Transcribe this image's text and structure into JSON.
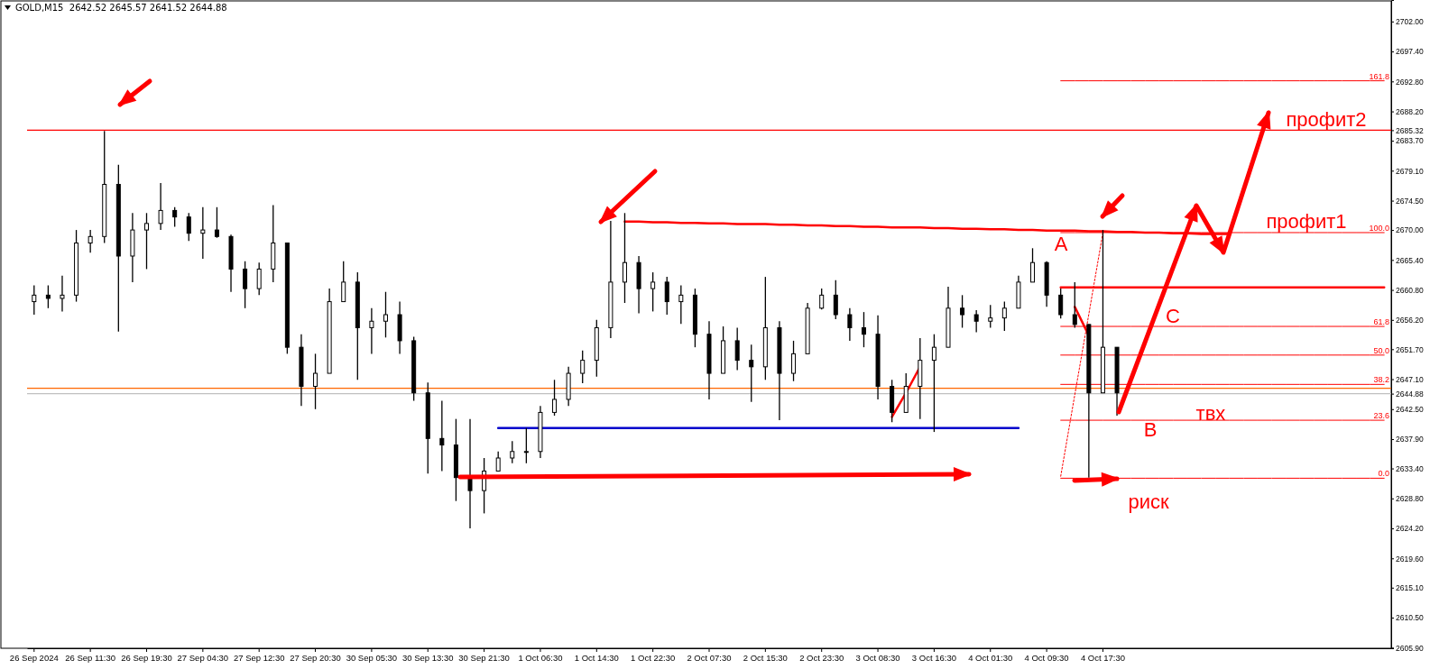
{
  "chart_data": {
    "type": "candlestick",
    "title": "GOLD,M15  2642.52 2645.57 2641.52 2644.88",
    "color": "#000000",
    "categories": [
      "26 Sep 2024",
      null,
      null,
      null,
      "26 Sep 11:30",
      null,
      null,
      null,
      "26 Sep 19:30",
      null,
      null,
      null,
      "27 Sep 04:30",
      null,
      null,
      null,
      "27 Sep 12:30",
      null,
      null,
      null,
      "27 Sep 20:30",
      null,
      null,
      null,
      "30 Sep 05:30",
      null,
      null,
      null,
      "30 Sep 13:30",
      null,
      null,
      null,
      "30 Sep 21:30",
      null,
      null,
      null,
      "1 Oct 06:30",
      null,
      null,
      null,
      "1 Oct 14:30",
      null,
      null,
      null,
      "1 Oct 22:30",
      null,
      null,
      null,
      "2 Oct 07:30",
      null,
      null,
      null,
      "2 Oct 15:30",
      null,
      null,
      null,
      "2 Oct 23:30",
      null,
      null,
      null,
      "3 Oct 08:30",
      null,
      null,
      null,
      "3 Oct 16:30",
      null,
      null,
      null,
      "4 Oct 01:30",
      null,
      null,
      null,
      "4 Oct 09:30",
      null,
      null,
      null,
      "4 Oct 17:30",
      null,
      null,
      null,
      null,
      null,
      null,
      null,
      null,
      null,
      null,
      null,
      null,
      null,
      null,
      null,
      null,
      null,
      null,
      null,
      null
    ],
    "ohlc": [
      [
        2659,
        2661.5,
        2657,
        2660
      ],
      [
        2660,
        2661.5,
        2658,
        2659.5
      ],
      [
        2659.5,
        2663,
        2657.5,
        2660
      ],
      [
        2660,
        2670,
        2659,
        2668
      ],
      [
        2668,
        2670,
        2666.5,
        2669
      ],
      [
        2669,
        2685.2,
        2668,
        2677
      ],
      [
        2677,
        2680,
        2654.4,
        2666
      ],
      [
        2666,
        2672.6,
        2662,
        2670
      ],
      [
        2670,
        2672.6,
        2664,
        2671
      ],
      [
        2671,
        2677.2,
        2670,
        2673
      ],
      [
        2673,
        2673.5,
        2670.5,
        2672
      ],
      [
        2672,
        2672.6,
        2668.3,
        2669.5
      ],
      [
        2669.5,
        2673.5,
        2665.6,
        2670
      ],
      [
        2670,
        2673.5,
        2668.8,
        2669
      ],
      [
        2669,
        2669.3,
        2660.5,
        2664
      ],
      [
        2664,
        2665.2,
        2658,
        2661
      ],
      [
        2661,
        2665,
        2660,
        2664
      ],
      [
        2664,
        2673.8,
        2662,
        2668
      ],
      [
        2668,
        2668,
        2651,
        2652
      ],
      [
        2652,
        2654,
        2643,
        2646
      ],
      [
        2646,
        2651,
        2642.5,
        2648
      ],
      [
        2648,
        2661,
        2648,
        2659
      ],
      [
        2659,
        2665.2,
        2659,
        2662
      ],
      [
        2662,
        2663.5,
        2647,
        2655
      ],
      [
        2655,
        2658,
        2651,
        2656
      ],
      [
        2656,
        2660.5,
        2653.5,
        2657
      ],
      [
        2657,
        2659,
        2651,
        2653
      ],
      [
        2653,
        2653.6,
        2643.8,
        2645
      ],
      [
        2645,
        2646.6,
        2632.6,
        2638
      ],
      [
        2638,
        2643.8,
        2633,
        2637
      ],
      [
        2637,
        2641,
        2628.4,
        2632
      ],
      [
        2632,
        2641,
        2624.2,
        2630
      ],
      [
        2630,
        2635,
        2626.5,
        2633
      ],
      [
        2633,
        2636,
        2633,
        2635
      ],
      [
        2635,
        2637.6,
        2634.2,
        2636
      ],
      [
        2636,
        2639.6,
        2634.2,
        2636
      ],
      [
        2636,
        2643,
        2635,
        2642
      ],
      [
        2642,
        2647,
        2641.5,
        2644
      ],
      [
        2644,
        2649,
        2643,
        2648
      ],
      [
        2648,
        2651.5,
        2646.5,
        2650
      ],
      [
        2650,
        2656.2,
        2647.5,
        2655
      ],
      [
        2655,
        2671.4,
        2653.4,
        2662
      ],
      [
        2662,
        2672.6,
        2658.8,
        2665
      ],
      [
        2665,
        2666,
        2657.2,
        2661
      ],
      [
        2661,
        2663.5,
        2657.5,
        2662
      ],
      [
        2662,
        2662.8,
        2657,
        2659
      ],
      [
        2659,
        2661.5,
        2655.6,
        2660
      ],
      [
        2660,
        2661,
        2652,
        2654
      ],
      [
        2654,
        2656,
        2644,
        2648
      ],
      [
        2648,
        2655.2,
        2648,
        2653
      ],
      [
        2653,
        2655,
        2648.5,
        2650
      ],
      [
        2650,
        2652.4,
        2643.6,
        2649
      ],
      [
        2649,
        2662.8,
        2647,
        2655
      ],
      [
        2655,
        2656,
        2640.8,
        2648
      ],
      [
        2648,
        2653,
        2646.8,
        2651
      ],
      [
        2651,
        2658.8,
        2651,
        2658
      ],
      [
        2658,
        2661,
        2657.8,
        2660
      ],
      [
        2660,
        2662.3,
        2656.3,
        2657
      ],
      [
        2657,
        2658,
        2653,
        2655
      ],
      [
        2655,
        2657.4,
        2652,
        2654
      ],
      [
        2654,
        2656.9,
        2644,
        2646
      ],
      [
        2646,
        2647,
        2640.5,
        2642
      ],
      [
        2642,
        2648,
        2642,
        2646
      ],
      [
        2646,
        2653.4,
        2641,
        2650
      ],
      [
        2650,
        2654,
        2639,
        2652
      ],
      [
        2652,
        2661.3,
        2652,
        2658
      ],
      [
        2658,
        2660,
        2655,
        2657
      ],
      [
        2657,
        2657.7,
        2654.3,
        2656
      ],
      [
        2656,
        2658.5,
        2655,
        2656.5
      ],
      [
        2656.5,
        2659,
        2654.5,
        2658
      ],
      [
        2658,
        2663,
        2658,
        2662
      ],
      [
        2662,
        2667.2,
        2662,
        2665
      ],
      [
        2665,
        2665.2,
        2658.2,
        2660
      ],
      [
        2660,
        2661,
        2656.4,
        2657
      ],
      [
        2657,
        2662,
        2655,
        2655.5
      ],
      [
        2655.5,
        2655.5,
        2632,
        2645
      ],
      [
        2645,
        2670,
        2645,
        2652
      ],
      [
        2652,
        2652,
        2641.5,
        2645
      ],
      null,
      null,
      null,
      null,
      null,
      null,
      null,
      null,
      null,
      null,
      null,
      null,
      null,
      null,
      null,
      null,
      null,
      null,
      null
    ],
    "series": [
      {
        "type": "line",
        "color": "#ff0000",
        "values": [
          null,
          null,
          null,
          null,
          null,
          null,
          null,
          null,
          null,
          null,
          null,
          null,
          null,
          null,
          null,
          null,
          null,
          null,
          null,
          null,
          null,
          null,
          null,
          null,
          null,
          null,
          null,
          null,
          null,
          null,
          null,
          null,
          null,
          null,
          null,
          null,
          null,
          null,
          null,
          null,
          null,
          null,
          2671.3,
          2671.3,
          2671.2,
          2671.2,
          2671.1,
          2671.1,
          2671.0,
          2671.0,
          2670.9,
          2670.9,
          2670.9,
          2670.8,
          2670.8,
          2670.7,
          2670.7,
          2670.6,
          2670.6,
          2670.5,
          2670.5,
          2670.4,
          2670.4,
          2670.4,
          2670.3,
          2670.3,
          2670.2,
          2670.2,
          2670.1,
          2670.1,
          2670.0,
          2670.0,
          2669.9,
          2669.9,
          2669.9,
          2669.8,
          2669.8,
          2669.7,
          2669.7,
          2669.6,
          2669.6,
          2669.5,
          2669.5,
          2669.4,
          2669.4,
          2669.4,
          null,
          null,
          null,
          null,
          null,
          null,
          null,
          null,
          null,
          null,
          null
        ]
      },
      {
        "type": "line",
        "color": "#0000cc",
        "values": [
          null,
          null,
          null,
          null,
          null,
          null,
          null,
          null,
          null,
          null,
          null,
          null,
          null,
          null,
          null,
          null,
          null,
          null,
          null,
          null,
          null,
          null,
          null,
          null,
          null,
          null,
          null,
          null,
          null,
          null,
          null,
          null,
          null,
          2639.6,
          2639.6,
          2639.6,
          2639.6,
          2639.6,
          2639.6,
          2639.6,
          2639.6,
          2639.6,
          2639.6,
          2639.6,
          2639.6,
          2639.6,
          2639.6,
          2639.6,
          2639.6,
          2639.6,
          2639.6,
          2639.6,
          2639.6,
          2639.6,
          2639.6,
          2639.6,
          2639.6,
          2639.6,
          2639.6,
          2639.6,
          2639.6,
          2639.6,
          2639.6,
          2639.6,
          2639.6,
          2639.6,
          2639.6,
          2639.6,
          2639.6,
          2639.6,
          2639.6,
          null,
          null,
          null,
          null,
          null,
          null,
          null,
          null,
          null,
          null,
          null,
          null,
          null,
          null,
          null,
          null,
          null,
          null,
          null,
          null,
          null,
          null,
          null,
          null,
          null,
          null
        ]
      },
      {
        "type": "line",
        "color": "#ff0000",
        "values": [
          null,
          null,
          null,
          null,
          null,
          null,
          null,
          null,
          null,
          null,
          null,
          null,
          null,
          null,
          null,
          null,
          null,
          null,
          null,
          null,
          null,
          null,
          null,
          null,
          null,
          null,
          null,
          null,
          null,
          null,
          null,
          null,
          null,
          null,
          null,
          null,
          null,
          null,
          null,
          null,
          null,
          null,
          null,
          null,
          null,
          null,
          null,
          null,
          null,
          null,
          null,
          null,
          null,
          null,
          null,
          null,
          null,
          null,
          null,
          null,
          null,
          2641.3,
          2645.0,
          2649.0,
          null,
          null,
          null,
          null,
          null,
          null,
          null,
          null,
          null,
          null,
          null,
          null,
          null,
          null,
          null,
          null,
          null,
          null,
          null,
          null,
          null,
          null,
          null,
          null,
          null,
          null,
          null,
          null,
          null,
          null,
          null,
          null,
          null
        ]
      },
      {
        "type": "line",
        "color": "#ff0000",
        "values": [
          null,
          null,
          null,
          null,
          null,
          null,
          null,
          null,
          null,
          null,
          null,
          null,
          null,
          null,
          null,
          null,
          null,
          null,
          null,
          null,
          null,
          null,
          null,
          null,
          null,
          null,
          null,
          null,
          null,
          null,
          null,
          null,
          null,
          null,
          null,
          null,
          null,
          null,
          null,
          null,
          null,
          null,
          null,
          null,
          null,
          null,
          null,
          null,
          null,
          null,
          null,
          null,
          null,
          null,
          null,
          null,
          null,
          null,
          null,
          null,
          null,
          null,
          null,
          null,
          null,
          null,
          null,
          null,
          null,
          null,
          null,
          null,
          null,
          null,
          2658.2,
          2653.8,
          null,
          null,
          null,
          null,
          null,
          null,
          null,
          null,
          null,
          null,
          null,
          null,
          null,
          null,
          null,
          null,
          null,
          null,
          null,
          null,
          null
        ]
      },
      {
        "type": "line",
        "color": "#ff0000",
        "line_style": "dotted",
        "values": [
          null,
          null,
          null,
          null,
          null,
          null,
          null,
          null,
          null,
          null,
          null,
          null,
          null,
          null,
          null,
          null,
          null,
          null,
          null,
          null,
          null,
          null,
          null,
          null,
          null,
          null,
          null,
          null,
          null,
          null,
          null,
          null,
          null,
          null,
          null,
          null,
          null,
          null,
          null,
          null,
          null,
          null,
          null,
          null,
          null,
          null,
          null,
          null,
          null,
          null,
          null,
          null,
          null,
          null,
          null,
          null,
          null,
          null,
          null,
          null,
          null,
          null,
          null,
          null,
          null,
          null,
          null,
          null,
          null,
          null,
          null,
          null,
          null,
          2632.2,
          2644.7,
          2657.1,
          2669.6,
          null,
          null,
          null,
          null,
          null,
          null,
          null,
          null,
          null,
          null,
          null,
          null,
          null,
          null,
          null,
          null,
          null,
          null,
          null,
          null
        ]
      },
      {
        "type": "line",
        "name": "161.8",
        "color": "#ff0000",
        "values": [
          null,
          null,
          null,
          null,
          null,
          null,
          null,
          null,
          null,
          null,
          null,
          null,
          null,
          null,
          null,
          null,
          null,
          null,
          null,
          null,
          null,
          null,
          null,
          null,
          null,
          null,
          null,
          null,
          null,
          null,
          null,
          null,
          null,
          null,
          null,
          null,
          null,
          null,
          null,
          null,
          null,
          null,
          null,
          null,
          null,
          null,
          null,
          null,
          null,
          null,
          null,
          null,
          null,
          null,
          null,
          null,
          null,
          null,
          null,
          null,
          null,
          null,
          null,
          null,
          null,
          null,
          null,
          null,
          null,
          null,
          null,
          null,
          null,
          2692.9,
          2692.9,
          2692.9,
          2692.9,
          2692.9,
          2692.9,
          2692.9,
          2692.9,
          2692.9,
          2692.9,
          2692.9,
          2692.9,
          2692.9,
          2692.9,
          2692.9,
          2692.9,
          2692.9,
          2692.9,
          2692.9,
          2692.9,
          2692.9,
          2692.9,
          2692.9,
          2692.9
        ]
      },
      {
        "type": "line",
        "name": "100.0",
        "color": "#ff0000",
        "values": [
          null,
          null,
          null,
          null,
          null,
          null,
          null,
          null,
          null,
          null,
          null,
          null,
          null,
          null,
          null,
          null,
          null,
          null,
          null,
          null,
          null,
          null,
          null,
          null,
          null,
          null,
          null,
          null,
          null,
          null,
          null,
          null,
          null,
          null,
          null,
          null,
          null,
          null,
          null,
          null,
          null,
          null,
          null,
          null,
          null,
          null,
          null,
          null,
          null,
          null,
          null,
          null,
          null,
          null,
          null,
          null,
          null,
          null,
          null,
          null,
          null,
          null,
          null,
          null,
          null,
          null,
          null,
          null,
          null,
          null,
          null,
          null,
          null,
          2669.6,
          2669.6,
          2669.6,
          2669.6,
          2669.6,
          2669.6,
          2669.6,
          2669.6,
          2669.6,
          2669.6,
          2669.6,
          2669.6,
          2669.6,
          2669.6,
          2669.6,
          2669.6,
          2669.6,
          2669.6,
          2669.6,
          2669.6,
          2669.6,
          2669.6,
          2669.6,
          2669.6
        ]
      },
      {
        "type": "line",
        "color": "#ff0000",
        "values": [
          null,
          null,
          null,
          null,
          null,
          null,
          null,
          null,
          null,
          null,
          null,
          null,
          null,
          null,
          null,
          null,
          null,
          null,
          null,
          null,
          null,
          null,
          null,
          null,
          null,
          null,
          null,
          null,
          null,
          null,
          null,
          null,
          null,
          null,
          null,
          null,
          null,
          null,
          null,
          null,
          null,
          null,
          null,
          null,
          null,
          null,
          null,
          null,
          null,
          null,
          null,
          null,
          null,
          null,
          null,
          null,
          null,
          null,
          null,
          null,
          null,
          null,
          null,
          null,
          null,
          null,
          null,
          null,
          null,
          null,
          null,
          null,
          null,
          2661.2,
          2661.2,
          2661.2,
          2661.2,
          2661.2,
          2661.2,
          2661.2,
          2661.2,
          2661.2,
          2661.2,
          2661.2,
          2661.2,
          2661.2,
          2661.2,
          2661.2,
          2661.2,
          2661.2,
          2661.2,
          2661.2,
          2661.2,
          2661.2,
          2661.2,
          2661.2,
          2661.2
        ]
      },
      {
        "type": "line",
        "name": "61.8",
        "color": "#ff0000",
        "values": [
          null,
          null,
          null,
          null,
          null,
          null,
          null,
          null,
          null,
          null,
          null,
          null,
          null,
          null,
          null,
          null,
          null,
          null,
          null,
          null,
          null,
          null,
          null,
          null,
          null,
          null,
          null,
          null,
          null,
          null,
          null,
          null,
          null,
          null,
          null,
          null,
          null,
          null,
          null,
          null,
          null,
          null,
          null,
          null,
          null,
          null,
          null,
          null,
          null,
          null,
          null,
          null,
          null,
          null,
          null,
          null,
          null,
          null,
          null,
          null,
          null,
          null,
          null,
          null,
          null,
          null,
          null,
          null,
          null,
          null,
          null,
          null,
          null,
          2655.2,
          2655.2,
          2655.2,
          2655.2,
          2655.2,
          2655.2,
          2655.2,
          2655.2,
          2655.2,
          2655.2,
          2655.2,
          2655.2,
          2655.2,
          2655.2,
          2655.2,
          2655.2,
          2655.2,
          2655.2,
          2655.2,
          2655.2,
          2655.2,
          2655.2,
          2655.2,
          2655.2
        ]
      },
      {
        "type": "line",
        "name": "50.0",
        "color": "#ff0000",
        "values": [
          null,
          null,
          null,
          null,
          null,
          null,
          null,
          null,
          null,
          null,
          null,
          null,
          null,
          null,
          null,
          null,
          null,
          null,
          null,
          null,
          null,
          null,
          null,
          null,
          null,
          null,
          null,
          null,
          null,
          null,
          null,
          null,
          null,
          null,
          null,
          null,
          null,
          null,
          null,
          null,
          null,
          null,
          null,
          null,
          null,
          null,
          null,
          null,
          null,
          null,
          null,
          null,
          null,
          null,
          null,
          null,
          null,
          null,
          null,
          null,
          null,
          null,
          null,
          null,
          null,
          null,
          null,
          null,
          null,
          null,
          null,
          null,
          null,
          2650.8,
          2650.8,
          2650.8,
          2650.8,
          2650.8,
          2650.8,
          2650.8,
          2650.8,
          2650.8,
          2650.8,
          2650.8,
          2650.8,
          2650.8,
          2650.8,
          2650.8,
          2650.8,
          2650.8,
          2650.8,
          2650.8,
          2650.8,
          2650.8,
          2650.8,
          2650.8,
          2650.8
        ]
      },
      {
        "type": "line",
        "name": "38.2",
        "color": "#ff0000",
        "values": [
          null,
          null,
          null,
          null,
          null,
          null,
          null,
          null,
          null,
          null,
          null,
          null,
          null,
          null,
          null,
          null,
          null,
          null,
          null,
          null,
          null,
          null,
          null,
          null,
          null,
          null,
          null,
          null,
          null,
          null,
          null,
          null,
          null,
          null,
          null,
          null,
          null,
          null,
          null,
          null,
          null,
          null,
          null,
          null,
          null,
          null,
          null,
          null,
          null,
          null,
          null,
          null,
          null,
          null,
          null,
          null,
          null,
          null,
          null,
          null,
          null,
          null,
          null,
          null,
          null,
          null,
          null,
          null,
          null,
          null,
          null,
          null,
          null,
          2646.3,
          2646.3,
          2646.3,
          2646.3,
          2646.3,
          2646.3,
          2646.3,
          2646.3,
          2646.3,
          2646.3,
          2646.3,
          2646.3,
          2646.3,
          2646.3,
          2646.3,
          2646.3,
          2646.3,
          2646.3,
          2646.3,
          2646.3,
          2646.3,
          2646.3,
          2646.3,
          2646.3
        ]
      },
      {
        "type": "line",
        "name": "23.6",
        "color": "#ff0000",
        "values": [
          null,
          null,
          null,
          null,
          null,
          null,
          null,
          null,
          null,
          null,
          null,
          null,
          null,
          null,
          null,
          null,
          null,
          null,
          null,
          null,
          null,
          null,
          null,
          null,
          null,
          null,
          null,
          null,
          null,
          null,
          null,
          null,
          null,
          null,
          null,
          null,
          null,
          null,
          null,
          null,
          null,
          null,
          null,
          null,
          null,
          null,
          null,
          null,
          null,
          null,
          null,
          null,
          null,
          null,
          null,
          null,
          null,
          null,
          null,
          null,
          null,
          null,
          null,
          null,
          null,
          null,
          null,
          null,
          null,
          null,
          null,
          null,
          null,
          2640.8,
          2640.8,
          2640.8,
          2640.8,
          2640.8,
          2640.8,
          2640.8,
          2640.8,
          2640.8,
          2640.8,
          2640.8,
          2640.8,
          2640.8,
          2640.8,
          2640.8,
          2640.8,
          2640.8,
          2640.8,
          2640.8,
          2640.8,
          2640.8,
          2640.8,
          2640.8,
          2640.8
        ]
      },
      {
        "type": "line",
        "name": "0.0",
        "color": "#ff0000",
        "values": [
          null,
          null,
          null,
          null,
          null,
          null,
          null,
          null,
          null,
          null,
          null,
          null,
          null,
          null,
          null,
          null,
          null,
          null,
          null,
          null,
          null,
          null,
          null,
          null,
          null,
          null,
          null,
          null,
          null,
          null,
          null,
          null,
          null,
          null,
          null,
          null,
          null,
          null,
          null,
          null,
          null,
          null,
          null,
          null,
          null,
          null,
          null,
          null,
          null,
          null,
          null,
          null,
          null,
          null,
          null,
          null,
          null,
          null,
          null,
          null,
          null,
          null,
          null,
          null,
          null,
          null,
          null,
          null,
          null,
          null,
          null,
          null,
          null,
          2631.9,
          2631.9,
          2631.9,
          2631.9,
          2631.9,
          2631.9,
          2631.9,
          2631.9,
          2631.9,
          2631.9,
          2631.9,
          2631.9,
          2631.9,
          2631.9,
          2631.9,
          2631.9,
          2631.9,
          2631.9,
          2631.9,
          2631.9,
          2631.9,
          2631.9,
          2631.9,
          2631.9
        ]
      }
    ],
    "ylim": [
      2605.8,
      2705.3
    ],
    "yticks": [
      {
        "value": 2702,
        "label": "2702.00"
      },
      {
        "value": 2697.4,
        "label": "2697.40"
      },
      {
        "value": 2692.8,
        "label": "2692.80"
      },
      {
        "value": 2688.2,
        "label": "2688.20"
      },
      {
        "value": 2683.7,
        "label": "2683.70"
      },
      {
        "value": 2679.1,
        "label": "2679.10"
      },
      {
        "value": 2674.5,
        "label": "2674.50"
      },
      {
        "value": 2670,
        "label": "2670.00"
      },
      {
        "value": 2665.4,
        "label": "2665.40"
      },
      {
        "value": 2660.8,
        "label": "2660.80"
      },
      {
        "value": 2656.2,
        "label": "2656.20"
      },
      {
        "value": 2651.7,
        "label": "2651.70"
      },
      {
        "value": 2647.1,
        "label": "2647.10"
      },
      {
        "value": 2642.5,
        "label": "2642.50"
      },
      {
        "value": 2637.9,
        "label": "2637.90"
      },
      {
        "value": 2633.4,
        "label": "2633.40"
      },
      {
        "value": 2628.8,
        "label": "2628.80"
      },
      {
        "value": 2624.2,
        "label": "2624.20"
      },
      {
        "value": 2619.6,
        "label": "2619.60"
      },
      {
        "value": 2615.1,
        "label": "2615.10"
      },
      {
        "value": 2610.5,
        "label": "2610.50"
      },
      {
        "value": 2605.9,
        "label": "2605.90"
      },
      {
        "value": 2685.32,
        "label": "2685.32"
      },
      {
        "value": 2644.88,
        "label": "2644.88"
      }
    ],
    "ref_lines": [
      {
        "axis": "y",
        "value": 2685.32,
        "label": null,
        "color": "#ff0000"
      },
      {
        "axis": "y",
        "value": 2645.7,
        "label": null,
        "color": "#ff6600"
      },
      {
        "axis": "y",
        "value": 2644.88,
        "label": null,
        "color": "#c0c0c0"
      }
    ],
    "annotations": [
      "A",
      "B",
      "C",
      "твх",
      {
        "text": "риск",
        "y": 2632
      },
      "профит1",
      {
        "text": "профит2",
        "y": 2685.32
      }
    ]
  }
}
